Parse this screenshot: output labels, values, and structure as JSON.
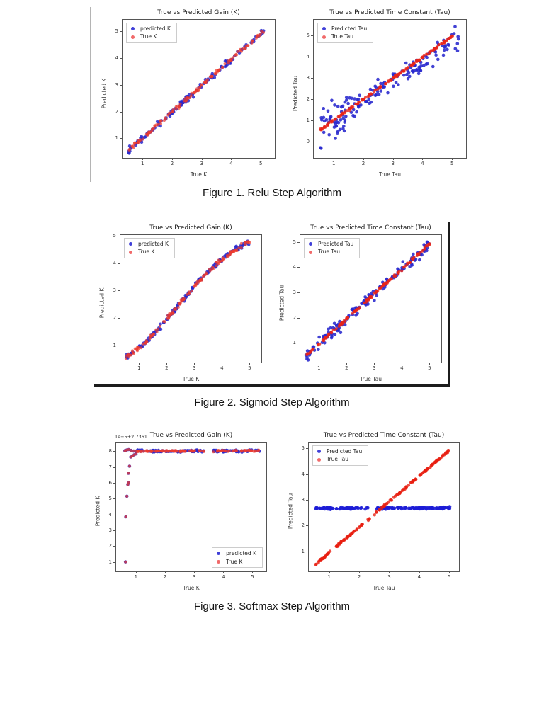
{
  "page": {
    "background": "#ffffff"
  },
  "figures": [
    {
      "caption": "Figure 1. Relu Step Algorithm"
    },
    {
      "caption": "Figure 2. Sigmoid Step Algorithm"
    },
    {
      "caption": "Figure 3. Softmax Step Algorithm"
    }
  ],
  "colors": {
    "predicted_blue": "#2828ce",
    "true_red": "#ec3a2e",
    "legend_blue": "#4040d8",
    "legend_red": "#f16a6a"
  },
  "chart_data": [
    {
      "type": "scatter",
      "title": "True vs Predicted Gain (K)",
      "xlabel": "True K",
      "ylabel": "Predicted K",
      "xlim": [
        0.3,
        5.45
      ],
      "ylim": [
        0.3,
        5.45
      ],
      "xticks": [
        1,
        2,
        3,
        4,
        5
      ],
      "yticks": [
        1,
        2,
        3,
        4,
        5
      ],
      "legend": {
        "position": "upper-left",
        "entries": [
          {
            "label": "predicted K",
            "color": "#4040d8"
          },
          {
            "label": "True K",
            "color": "#f16a6a"
          }
        ]
      },
      "series": [
        {
          "name": "predicted K",
          "color": "#2828ce",
          "alpha": 0.85,
          "r": 2.3,
          "gen": "curve",
          "anchors": [
            [
              0.5,
              0.58
            ],
            [
              5.15,
              5.12
            ]
          ],
          "n": 135,
          "ynoise": 0.055,
          "seed": 11
        },
        {
          "name": "True K",
          "color": "#ec3a2e",
          "alpha": 0.7,
          "r": 2.0,
          "gen": "curve",
          "anchors": [
            [
              0.5,
              0.58
            ],
            [
              5.15,
              5.12
            ]
          ],
          "n": 135,
          "ynoise": 0.04,
          "seed": 12
        }
      ]
    },
    {
      "type": "scatter",
      "title": "True vs Predicted Time Constant (Tau)",
      "xlabel": "True Tau",
      "ylabel": "Predicted Tau",
      "xlim": [
        0.3,
        5.45
      ],
      "ylim": [
        -0.75,
        5.75
      ],
      "xticks": [
        1,
        2,
        3,
        4,
        5
      ],
      "yticks": [
        0,
        1,
        2,
        3,
        4,
        5
      ],
      "legend": {
        "position": "upper-left",
        "entries": [
          {
            "label": "Predicted Tau",
            "color": "#4040d8"
          },
          {
            "label": "True Tau",
            "color": "#f16a6a"
          }
        ]
      },
      "series": [
        {
          "name": "Predicted Tau",
          "color": "#2828ce",
          "alpha": 0.88,
          "r": 2.3,
          "gen": "curve",
          "anchors": [
            [
              0.5,
              0.7
            ],
            [
              1.8,
              1.6
            ]
          ],
          "n": 60,
          "ynoise": 0.45,
          "seed": 21
        },
        {
          "name": "Predicted Tau",
          "color": "#2828ce",
          "alpha": 0.88,
          "r": 2.3,
          "gen": "curve",
          "anchors": [
            [
              1.8,
              1.8
            ],
            [
              5.2,
              4.95
            ]
          ],
          "n": 105,
          "ynoise": 0.24,
          "seed": 22
        },
        {
          "name": "True Tau",
          "color": "#e82418",
          "alpha": 0.8,
          "r": 2.0,
          "gen": "curve",
          "anchors": [
            [
              0.5,
              0.55
            ],
            [
              5.0,
              5.0
            ]
          ],
          "n": 170,
          "ynoise": 0.025,
          "seed": 23
        }
      ]
    },
    {
      "type": "scatter",
      "title": "True vs Predicted Gain (K)",
      "xlabel": "True K",
      "ylabel": "Predicted K",
      "xlim": [
        0.3,
        5.4
      ],
      "ylim": [
        0.4,
        5.05
      ],
      "xticks": [
        1,
        2,
        3,
        4,
        5
      ],
      "yticks": [
        1,
        2,
        3,
        4,
        5
      ],
      "legend": {
        "position": "upper-left",
        "entries": [
          {
            "label": "predicted K",
            "color": "#4040d8"
          },
          {
            "label": "True K",
            "color": "#f16a6a"
          }
        ]
      },
      "series": [
        {
          "name": "predicted K",
          "color": "#2828ce",
          "alpha": 0.85,
          "r": 2.3,
          "gen": "curve",
          "anchors": [
            [
              0.5,
              0.62
            ],
            [
              1.0,
              0.95
            ],
            [
              1.5,
              1.42
            ],
            [
              2.0,
              2.02
            ],
            [
              2.5,
              2.62
            ],
            [
              3.0,
              3.22
            ],
            [
              3.5,
              3.74
            ],
            [
              4.0,
              4.18
            ],
            [
              4.5,
              4.55
            ],
            [
              5.0,
              4.83
            ]
          ],
          "n": 140,
          "ynoise": 0.05,
          "seed": 31
        },
        {
          "name": "True K",
          "color": "#ec3a2e",
          "alpha": 0.7,
          "r": 2.0,
          "gen": "curve",
          "anchors": [
            [
              0.5,
              0.62
            ],
            [
              1.0,
              0.95
            ],
            [
              1.5,
              1.42
            ],
            [
              2.0,
              2.02
            ],
            [
              2.5,
              2.62
            ],
            [
              3.0,
              3.22
            ],
            [
              3.5,
              3.74
            ],
            [
              4.0,
              4.18
            ],
            [
              4.5,
              4.55
            ],
            [
              5.0,
              4.83
            ]
          ],
          "n": 140,
          "ynoise": 0.04,
          "seed": 32
        }
      ]
    },
    {
      "type": "scatter",
      "title": "True vs Predicted Time Constant (Tau)",
      "xlabel": "True Tau",
      "ylabel": "Predicted Tau",
      "xlim": [
        0.3,
        5.4
      ],
      "ylim": [
        0.25,
        5.3
      ],
      "xticks": [
        1,
        2,
        3,
        4,
        5
      ],
      "yticks": [
        1,
        2,
        3,
        4,
        5
      ],
      "legend": {
        "position": "upper-left",
        "entries": [
          {
            "label": "Predicted Tau",
            "color": "#4040d8"
          },
          {
            "label": "True Tau",
            "color": "#f16a6a"
          }
        ]
      },
      "series": [
        {
          "name": "Predicted Tau",
          "color": "#2828ce",
          "alpha": 0.88,
          "r": 2.3,
          "gen": "curve",
          "anchors": [
            [
              0.5,
              0.52
            ],
            [
              5.0,
              4.97
            ]
          ],
          "n": 150,
          "ynoise": 0.12,
          "seed": 41
        },
        {
          "name": "True Tau",
          "color": "#e82418",
          "alpha": 0.8,
          "r": 2.0,
          "gen": "curve",
          "anchors": [
            [
              0.5,
              0.52
            ],
            [
              5.0,
              4.97
            ]
          ],
          "n": 150,
          "ynoise": 0.025,
          "seed": 42
        }
      ]
    },
    {
      "type": "scatter",
      "title": "True vs Predicted Gain (K)",
      "offset_text": "1e−5+2.7361",
      "xlabel": "True K",
      "ylabel": "Predicted K",
      "xlim": [
        0.3,
        5.45
      ],
      "ylim": [
        0.45,
        8.6
      ],
      "xticks": [
        1,
        2,
        3,
        4,
        5
      ],
      "yticks": [
        1,
        2,
        3,
        4,
        5,
        6,
        7,
        8
      ],
      "legend": {
        "position": "lower-right",
        "entries": [
          {
            "label": "predicted K",
            "color": "#4040d8"
          },
          {
            "label": "True K",
            "color": "#f16a6a"
          }
        ]
      },
      "series": [
        {
          "name": "predicted K",
          "color": "#2828ce",
          "alpha": 0.9,
          "r": 2.3,
          "gen": "pts",
          "pts": [
            [
              0.62,
              1.05
            ],
            [
              0.63,
              3.9
            ],
            [
              0.67,
              5.2
            ],
            [
              0.7,
              5.95
            ],
            [
              0.73,
              6.05
            ],
            [
              0.72,
              6.65
            ],
            [
              0.76,
              7.1
            ],
            [
              0.8,
              7.68
            ],
            [
              0.86,
              7.76
            ],
            [
              0.92,
              7.82
            ],
            [
              0.98,
              7.88
            ],
            [
              0.6,
              8.08
            ],
            [
              0.66,
              8.12
            ],
            [
              0.73,
              8.15
            ],
            [
              0.81,
              8.1
            ],
            [
              0.9,
              8.06
            ]
          ]
        },
        {
          "name": "predicted K",
          "color": "#2828ce",
          "alpha": 0.9,
          "r": 2.3,
          "gen": "curve",
          "anchors": [
            [
              0.98,
              8.05
            ],
            [
              5.22,
              8.08
            ]
          ],
          "n": 125,
          "ynoise": 0.03,
          "gaps": [
            [
              3.35,
              3.62
            ]
          ],
          "seed": 51
        },
        {
          "name": "True K",
          "color": "#ec3a2e",
          "alpha": 0.7,
          "r": 2.0,
          "gen": "pts",
          "pts": [
            [
              0.62,
              1.05
            ],
            [
              0.63,
              3.9
            ],
            [
              0.67,
              5.2
            ],
            [
              0.7,
              5.95
            ],
            [
              0.73,
              6.05
            ],
            [
              0.72,
              6.65
            ],
            [
              0.76,
              7.1
            ],
            [
              0.8,
              7.68
            ],
            [
              0.86,
              7.76
            ],
            [
              0.92,
              7.82
            ],
            [
              0.98,
              7.88
            ],
            [
              0.6,
              8.08
            ],
            [
              0.66,
              8.12
            ],
            [
              0.73,
              8.15
            ],
            [
              0.81,
              8.1
            ],
            [
              0.9,
              8.06
            ]
          ]
        },
        {
          "name": "True K",
          "color": "#ec3a2e",
          "alpha": 0.7,
          "r": 2.0,
          "gen": "curve",
          "anchors": [
            [
              0.98,
              8.05
            ],
            [
              5.22,
              8.08
            ]
          ],
          "n": 125,
          "ynoise": 0.025,
          "gaps": [
            [
              3.35,
              3.62
            ]
          ],
          "seed": 52
        }
      ]
    },
    {
      "type": "scatter",
      "title": "True vs Predicted Time Constant (Tau)",
      "xlabel": "True Tau",
      "ylabel": "Predicted Tau",
      "xlim": [
        0.3,
        5.3
      ],
      "ylim": [
        0.25,
        5.25
      ],
      "xticks": [
        1,
        2,
        3,
        4,
        5
      ],
      "yticks": [
        1,
        2,
        3,
        4,
        5
      ],
      "legend": {
        "position": "upper-left",
        "entries": [
          {
            "label": "Predicted Tau",
            "color": "#4040d8"
          },
          {
            "label": "True Tau",
            "color": "#f16a6a"
          }
        ]
      },
      "series": [
        {
          "name": "Predicted Tau",
          "color": "#1d1dd6",
          "alpha": 0.9,
          "r": 2.4,
          "gen": "curve",
          "anchors": [
            [
              0.5,
              2.69
            ],
            [
              5.0,
              2.71
            ]
          ],
          "n": 185,
          "ynoise": 0.02,
          "gaps": [
            [
              2.28,
              2.46
            ]
          ],
          "seed": 61
        },
        {
          "name": "True Tau",
          "color": "#e81d10",
          "alpha": 0.78,
          "r": 2.2,
          "gen": "curve",
          "anchors": [
            [
              0.5,
              0.5
            ],
            [
              5.0,
              4.97
            ]
          ],
          "n": 185,
          "ynoise": 0.018,
          "gaps": [
            [
              1.05,
              1.2
            ],
            [
              2.32,
              2.46
            ]
          ],
          "seed": 62
        }
      ]
    }
  ]
}
